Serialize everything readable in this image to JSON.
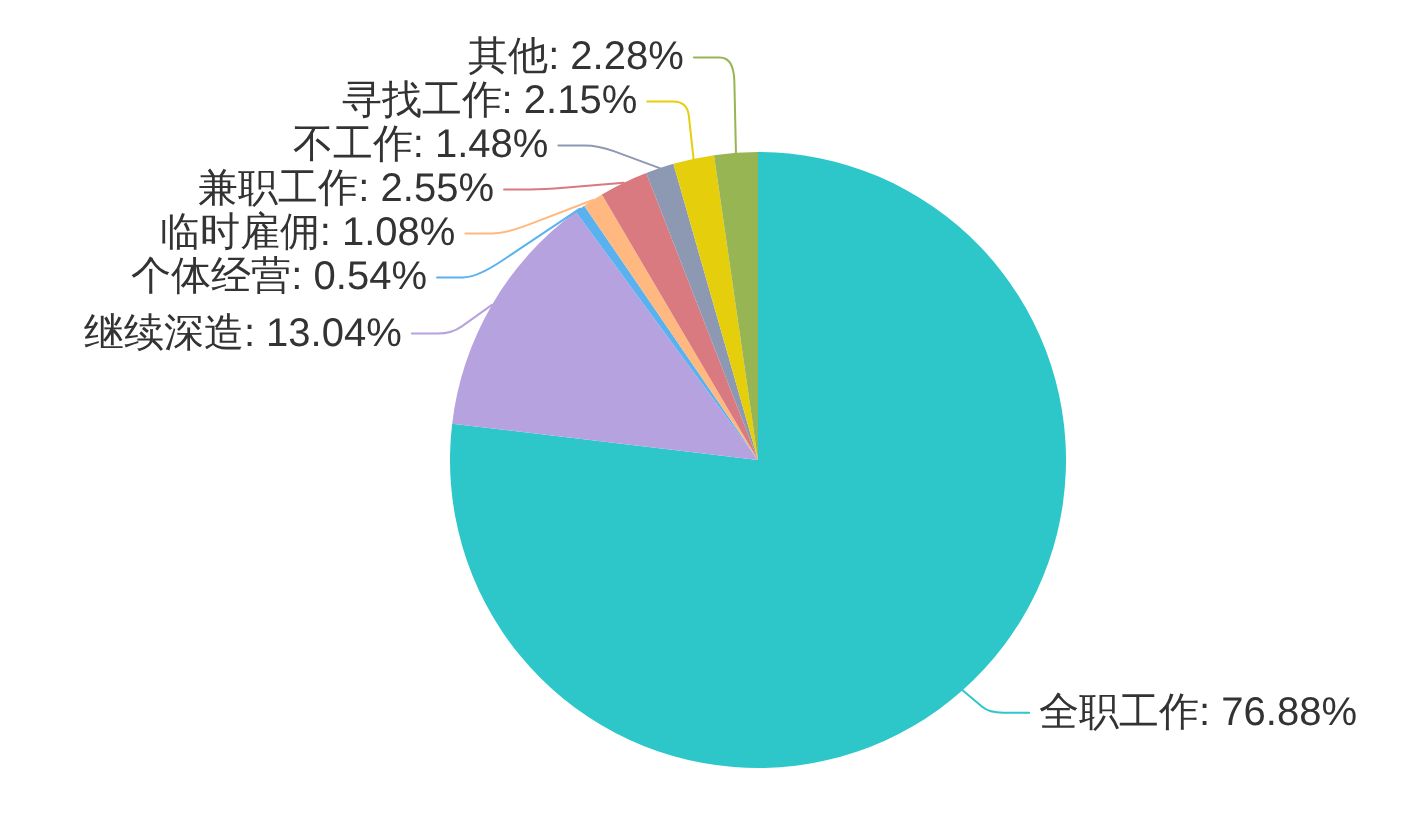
{
  "chart_data": {
    "type": "pie",
    "categories": [
      "全职工作",
      "继续深造",
      "个体经营",
      "临时雇佣",
      "兼职工作",
      "不工作",
      "寻找工作",
      "其他"
    ],
    "values": [
      76.88,
      13.04,
      0.54,
      1.08,
      2.55,
      1.48,
      2.15,
      2.28
    ],
    "colors": [
      "#2ec7c9",
      "#b6a2de",
      "#5ab1ef",
      "#ffb980",
      "#d87a80",
      "#8d98b3",
      "#e5cf0d",
      "#97b552"
    ],
    "value_labels": [
      "76.88%",
      "13.04%",
      "0.54%",
      "1.08%",
      "2.55%",
      "1.48%",
      "2.15%",
      "2.28%"
    ]
  }
}
